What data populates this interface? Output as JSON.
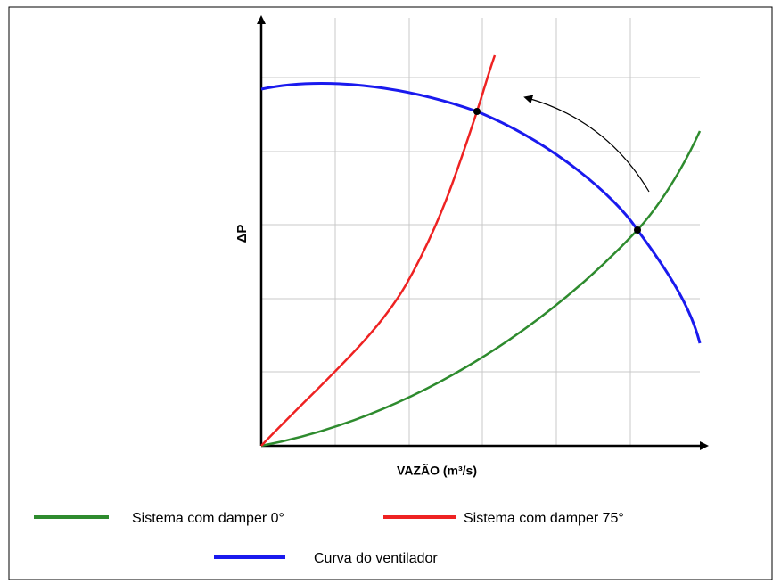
{
  "axes": {
    "y_label": "ΔP",
    "x_label": "VAZÃO (m³/s)"
  },
  "legend": [
    "Sistema com damper 0°",
    "Sistema com damper 75°",
    "Curva do ventilador"
  ]
}
